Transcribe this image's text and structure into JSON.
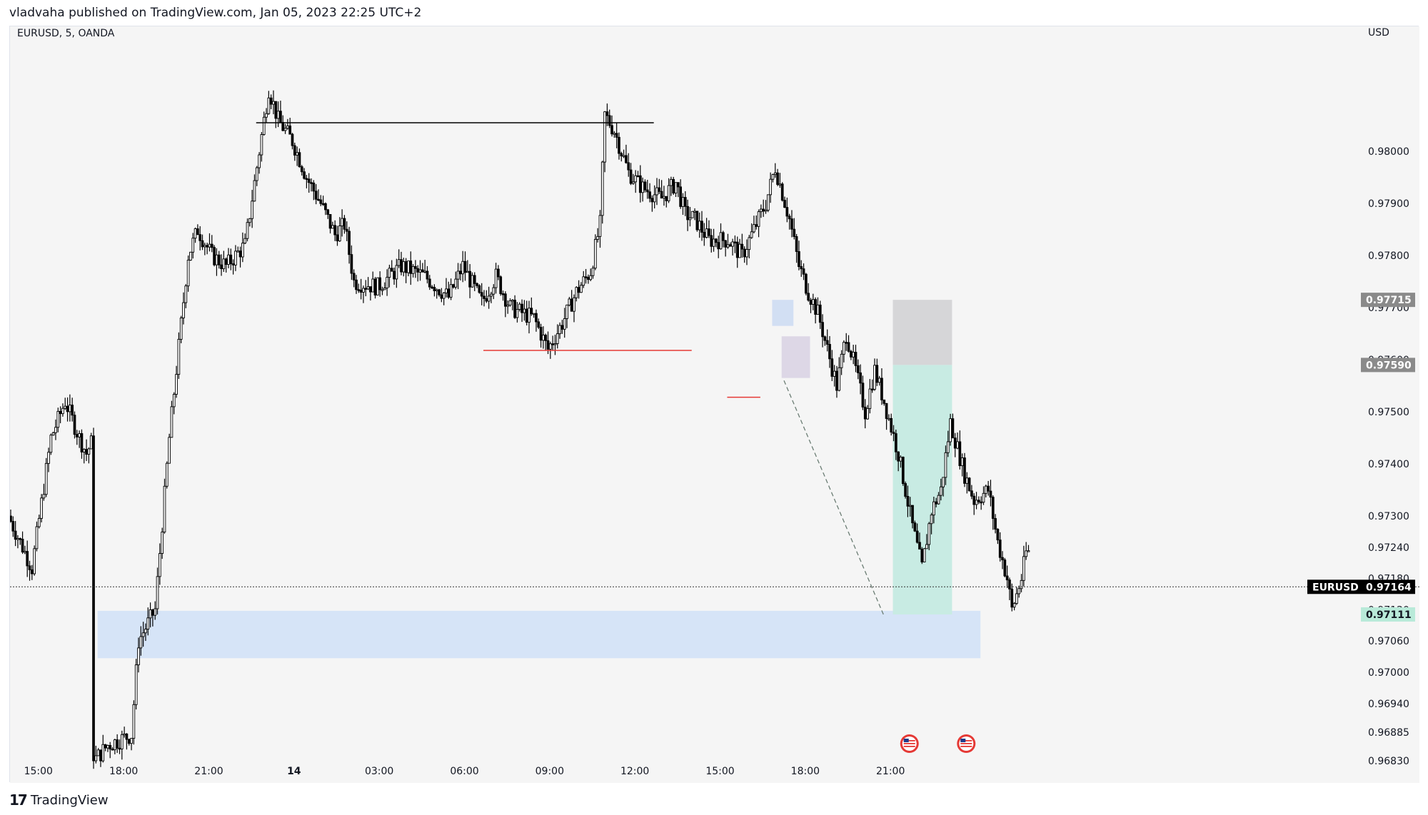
{
  "header": {
    "published": "vladvaha published on TradingView.com, Jan 05, 2023 22:25 UTC+2"
  },
  "watermark": {
    "brand": "TradingView",
    "logo_icon": "tradingview-logo-icon"
  },
  "chart_data": {
    "type": "candlestick",
    "symbol_label": "EURUSD, 5, OANDA",
    "currency": "USD",
    "ylim": [
      0.96815,
      0.9824
    ],
    "y_ticks": [
      "0.98000",
      "0.97900",
      "0.97800",
      "0.97700",
      "0.97600",
      "0.97500",
      "0.97400",
      "0.97300",
      "0.97240",
      "0.97180",
      "0.97120",
      "0.97060",
      "0.97000",
      "0.96940",
      "0.96885",
      "0.96830"
    ],
    "x_ticks": [
      "15:00",
      "18:00",
      "21:00",
      "14",
      "03:00",
      "06:00",
      "09:00",
      "12:00",
      "15:00",
      "18:00",
      "21:00"
    ],
    "price_path": [
      [
        0,
        0.973
      ],
      [
        10,
        0.972
      ],
      [
        18,
        0.9745
      ],
      [
        24,
        0.9752
      ],
      [
        30,
        0.9745
      ],
      [
        33,
        0.9742
      ],
      [
        36,
        0.9745
      ],
      [
        36.2,
        0.9683
      ],
      [
        42,
        0.9686
      ],
      [
        52,
        0.9688
      ],
      [
        55,
        0.9706
      ],
      [
        62,
        0.9712
      ],
      [
        68,
        0.9745
      ],
      [
        76,
        0.978
      ],
      [
        80,
        0.9785
      ],
      [
        86,
        0.978
      ],
      [
        92,
        0.9778
      ],
      [
        100,
        0.9782
      ],
      [
        106,
        0.98
      ],
      [
        110,
        0.9812
      ],
      [
        114,
        0.9806
      ],
      [
        120,
        0.9802
      ],
      [
        126,
        0.9795
      ],
      [
        132,
        0.979
      ],
      [
        138,
        0.9784
      ],
      [
        142,
        0.9786
      ],
      [
        146,
        0.9775
      ],
      [
        156,
        0.9774
      ],
      [
        166,
        0.9778
      ],
      [
        176,
        0.9776
      ],
      [
        186,
        0.9772
      ],
      [
        192,
        0.9778
      ],
      [
        200,
        0.9771
      ],
      [
        206,
        0.9776
      ],
      [
        212,
        0.977
      ],
      [
        222,
        0.9768
      ],
      [
        228,
        0.9762
      ],
      [
        234,
        0.9767
      ],
      [
        240,
        0.9773
      ],
      [
        246,
        0.9777
      ],
      [
        250,
        0.9786
      ],
      [
        252,
        0.9807
      ],
      [
        256,
        0.9804
      ],
      [
        262,
        0.9796
      ],
      [
        268,
        0.9793
      ],
      [
        276,
        0.9791
      ],
      [
        282,
        0.9794
      ],
      [
        286,
        0.9788
      ],
      [
        290,
        0.9787
      ],
      [
        296,
        0.9783
      ],
      [
        304,
        0.9783
      ],
      [
        310,
        0.978
      ],
      [
        314,
        0.9784
      ],
      [
        320,
        0.979
      ],
      [
        324,
        0.9797
      ],
      [
        330,
        0.9787
      ],
      [
        334,
        0.9778
      ],
      [
        338,
        0.9773
      ],
      [
        342,
        0.9769
      ],
      [
        346,
        0.9762
      ],
      [
        350,
        0.9755
      ],
      [
        354,
        0.9765
      ],
      [
        358,
        0.9758
      ],
      [
        362,
        0.975
      ],
      [
        366,
        0.9758
      ],
      [
        370,
        0.9752
      ],
      [
        376,
        0.9742
      ],
      [
        382,
        0.9728
      ],
      [
        386,
        0.972
      ],
      [
        390,
        0.9731
      ],
      [
        394,
        0.9735
      ],
      [
        398,
        0.9748
      ],
      [
        404,
        0.9738
      ],
      [
        408,
        0.9733
      ],
      [
        414,
        0.9735
      ],
      [
        418,
        0.9725
      ],
      [
        422,
        0.9718
      ],
      [
        424,
        0.9712
      ],
      [
        428,
        0.9718
      ],
      [
        430,
        0.9723
      ]
    ],
    "annotations": {
      "position_entry": "0.97590",
      "stop_loss": "0.97715",
      "take_profit": "0.97111",
      "last_price": "0.97164",
      "last_price_symbol": "EURUSD",
      "high_line": 0.98055,
      "swing_low_line": 0.97618,
      "demand_zone": [
        0.97027,
        0.97118
      ]
    }
  },
  "colors": {
    "background": "#f5f5f5",
    "candle": "#000000",
    "high_line": "#000000",
    "swing_low_line": "#e53935",
    "demand_zone": "#d6e4f7",
    "stop_zone": "#d6d6d8",
    "target_zone": "#c8ebe3",
    "stop_label_bg": "#8a8a8a",
    "target_label_bg": "#b9ead9",
    "last_price_bg": "#000000"
  },
  "icons": {
    "event_markers": [
      "us-flag-event-icon",
      "us-flag-event-icon"
    ]
  }
}
